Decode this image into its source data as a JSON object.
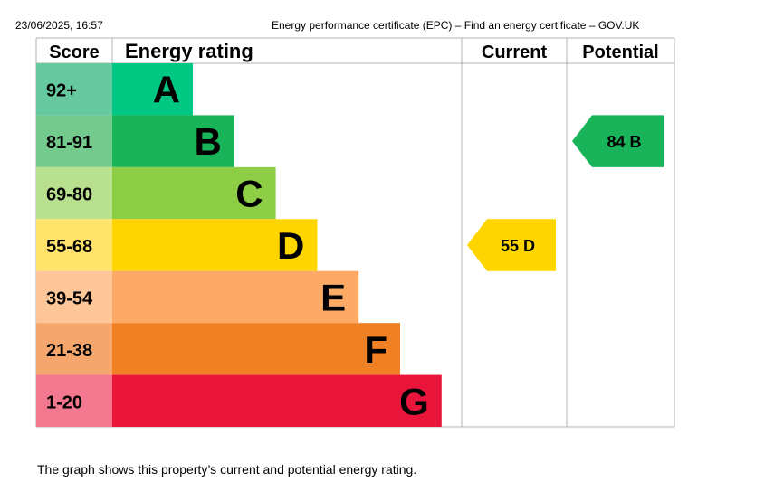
{
  "print_header": {
    "date": "23/06/2025, 16:57",
    "title": "Energy performance certificate (EPC) – Find an energy certificate – GOV.UK"
  },
  "chart_data": {
    "type": "bar",
    "headers": {
      "score": "Score",
      "rating": "Energy rating",
      "current": "Current",
      "potential": "Potential"
    },
    "bands": [
      {
        "letter": "A",
        "range": "92+",
        "color": "#008054",
        "score_color": "#65c89e",
        "bar_color": "#00c781"
      },
      {
        "letter": "B",
        "range": "81-91",
        "color": "#19b459",
        "score_color": "#74c98d",
        "bar_color": "#19b459"
      },
      {
        "letter": "C",
        "range": "69-80",
        "color": "#8dce46",
        "score_color": "#b9e08e",
        "bar_color": "#8dce46"
      },
      {
        "letter": "D",
        "range": "55-68",
        "color": "#ffd500",
        "score_color": "#ffe36a",
        "bar_color": "#ffd500"
      },
      {
        "letter": "E",
        "range": "39-54",
        "color": "#fcaa65",
        "score_color": "#fdc699",
        "bar_color": "#fcaa65"
      },
      {
        "letter": "F",
        "range": "21-38",
        "color": "#ef8023",
        "score_color": "#f4a66c",
        "bar_color": "#ef8023"
      },
      {
        "letter": "G",
        "range": "1-20",
        "color": "#e9153b",
        "score_color": "#f2788f",
        "bar_color": "#e9153b"
      }
    ],
    "current": {
      "value": 55,
      "letter": "D",
      "label": "55  D",
      "color": "#ffd500"
    },
    "potential": {
      "value": 84,
      "letter": "B",
      "label": "84  B",
      "color": "#19b459"
    }
  },
  "caption": "The graph shows this property’s current and potential energy rating."
}
